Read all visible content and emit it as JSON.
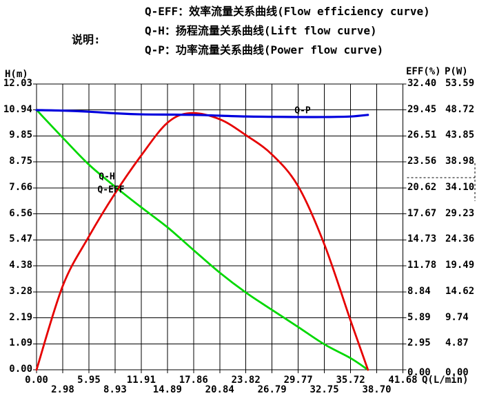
{
  "header": {
    "label": "说明:",
    "legend": [
      "Q-EFF：效率流量关系曲线(Flow efficiency curve)",
      "Q-H：扬程流量关系曲线(Lift flow curve)",
      "Q-P：功率流量关系曲线(Power flow curve)"
    ]
  },
  "chart_data": {
    "type": "line",
    "grid": true,
    "title": "",
    "x_axis": {
      "label": "Q(L/min)",
      "max": 41.68,
      "ticks": [
        "0.00",
        "2.98",
        "5.95",
        "8.93",
        "11.91",
        "14.89",
        "17.86",
        "20.84",
        "23.82",
        "26.79",
        "29.77",
        "32.75",
        "35.72",
        "38.70",
        "41.68"
      ]
    },
    "y_axis_left": {
      "label": "H(m)",
      "max": 12.03,
      "ticks": [
        "12.03",
        "10.94",
        "9.85",
        "8.75",
        "7.66",
        "6.56",
        "5.47",
        "4.38",
        "3.28",
        "2.19",
        "1.09",
        "0.00"
      ]
    },
    "y_axis_right": [
      {
        "label": "EFF(%)",
        "max": 32.4,
        "ticks": [
          "32.40",
          "29.45",
          "26.51",
          "23.56",
          "20.62",
          "17.67",
          "14.73",
          "11.78",
          "8.84",
          "5.89",
          "2.95",
          "0.00"
        ]
      },
      {
        "label": "P(W)",
        "max": 53.59,
        "ticks": [
          "53.59",
          "48.72",
          "43.85",
          "38.98",
          "34.10",
          "29.23",
          "24.36",
          "19.49",
          "14.62",
          "9.74",
          "4.87",
          "0.00"
        ]
      }
    ],
    "series": [
      {
        "name": "Q-H",
        "axis": "H(m)",
        "color": "#00d800",
        "ymax": 12.03,
        "points": [
          [
            0,
            10.94
          ],
          [
            2.98,
            9.77
          ],
          [
            5.95,
            8.64
          ],
          [
            8.93,
            7.71
          ],
          [
            11.91,
            6.84
          ],
          [
            14.89,
            6.0
          ],
          [
            17.86,
            5.04
          ],
          [
            20.84,
            4.09
          ],
          [
            23.82,
            3.25
          ],
          [
            26.79,
            2.52
          ],
          [
            29.77,
            1.8
          ],
          [
            32.75,
            1.07
          ],
          [
            35.72,
            0.49
          ],
          [
            37.7,
            0.0
          ]
        ]
      },
      {
        "name": "Q-EFF",
        "axis": "EFF(%)",
        "color": "#e60000",
        "ymax": 32.4,
        "points": [
          [
            0,
            0
          ],
          [
            2.98,
            9.5
          ],
          [
            5.95,
            15.1
          ],
          [
            8.93,
            20.0
          ],
          [
            11.91,
            24.3
          ],
          [
            14.89,
            28.0
          ],
          [
            17.5,
            29.1
          ],
          [
            20.84,
            28.4
          ],
          [
            23.82,
            26.6
          ],
          [
            26.79,
            24.4
          ],
          [
            29.77,
            20.8
          ],
          [
            32.75,
            14.2
          ],
          [
            35.72,
            5.6
          ],
          [
            37.7,
            0.0
          ]
        ]
      },
      {
        "name": "Q-P",
        "axis": "P(W)",
        "color": "#0000dd",
        "ymax": 53.59,
        "points": [
          [
            0,
            48.7
          ],
          [
            2.98,
            48.6
          ],
          [
            5.95,
            48.4
          ],
          [
            8.93,
            48.1
          ],
          [
            11.91,
            47.9
          ],
          [
            17.86,
            47.8
          ],
          [
            23.82,
            47.5
          ],
          [
            29.77,
            47.4
          ],
          [
            32.75,
            47.4
          ],
          [
            35.72,
            47.5
          ],
          [
            37.7,
            47.8
          ]
        ]
      }
    ],
    "annotations": [
      {
        "text": "Q-H",
        "q": 8.0,
        "h": 8.12
      },
      {
        "text": "Q-EFF",
        "q": 8.47,
        "h": 7.57
      },
      {
        "text": "Q-P",
        "q": 30.27,
        "h": 10.9
      }
    ],
    "marker": {
      "style": "dashed",
      "h_at": 8.09,
      "v_from": 8.7,
      "v_to": 7.1
    }
  }
}
